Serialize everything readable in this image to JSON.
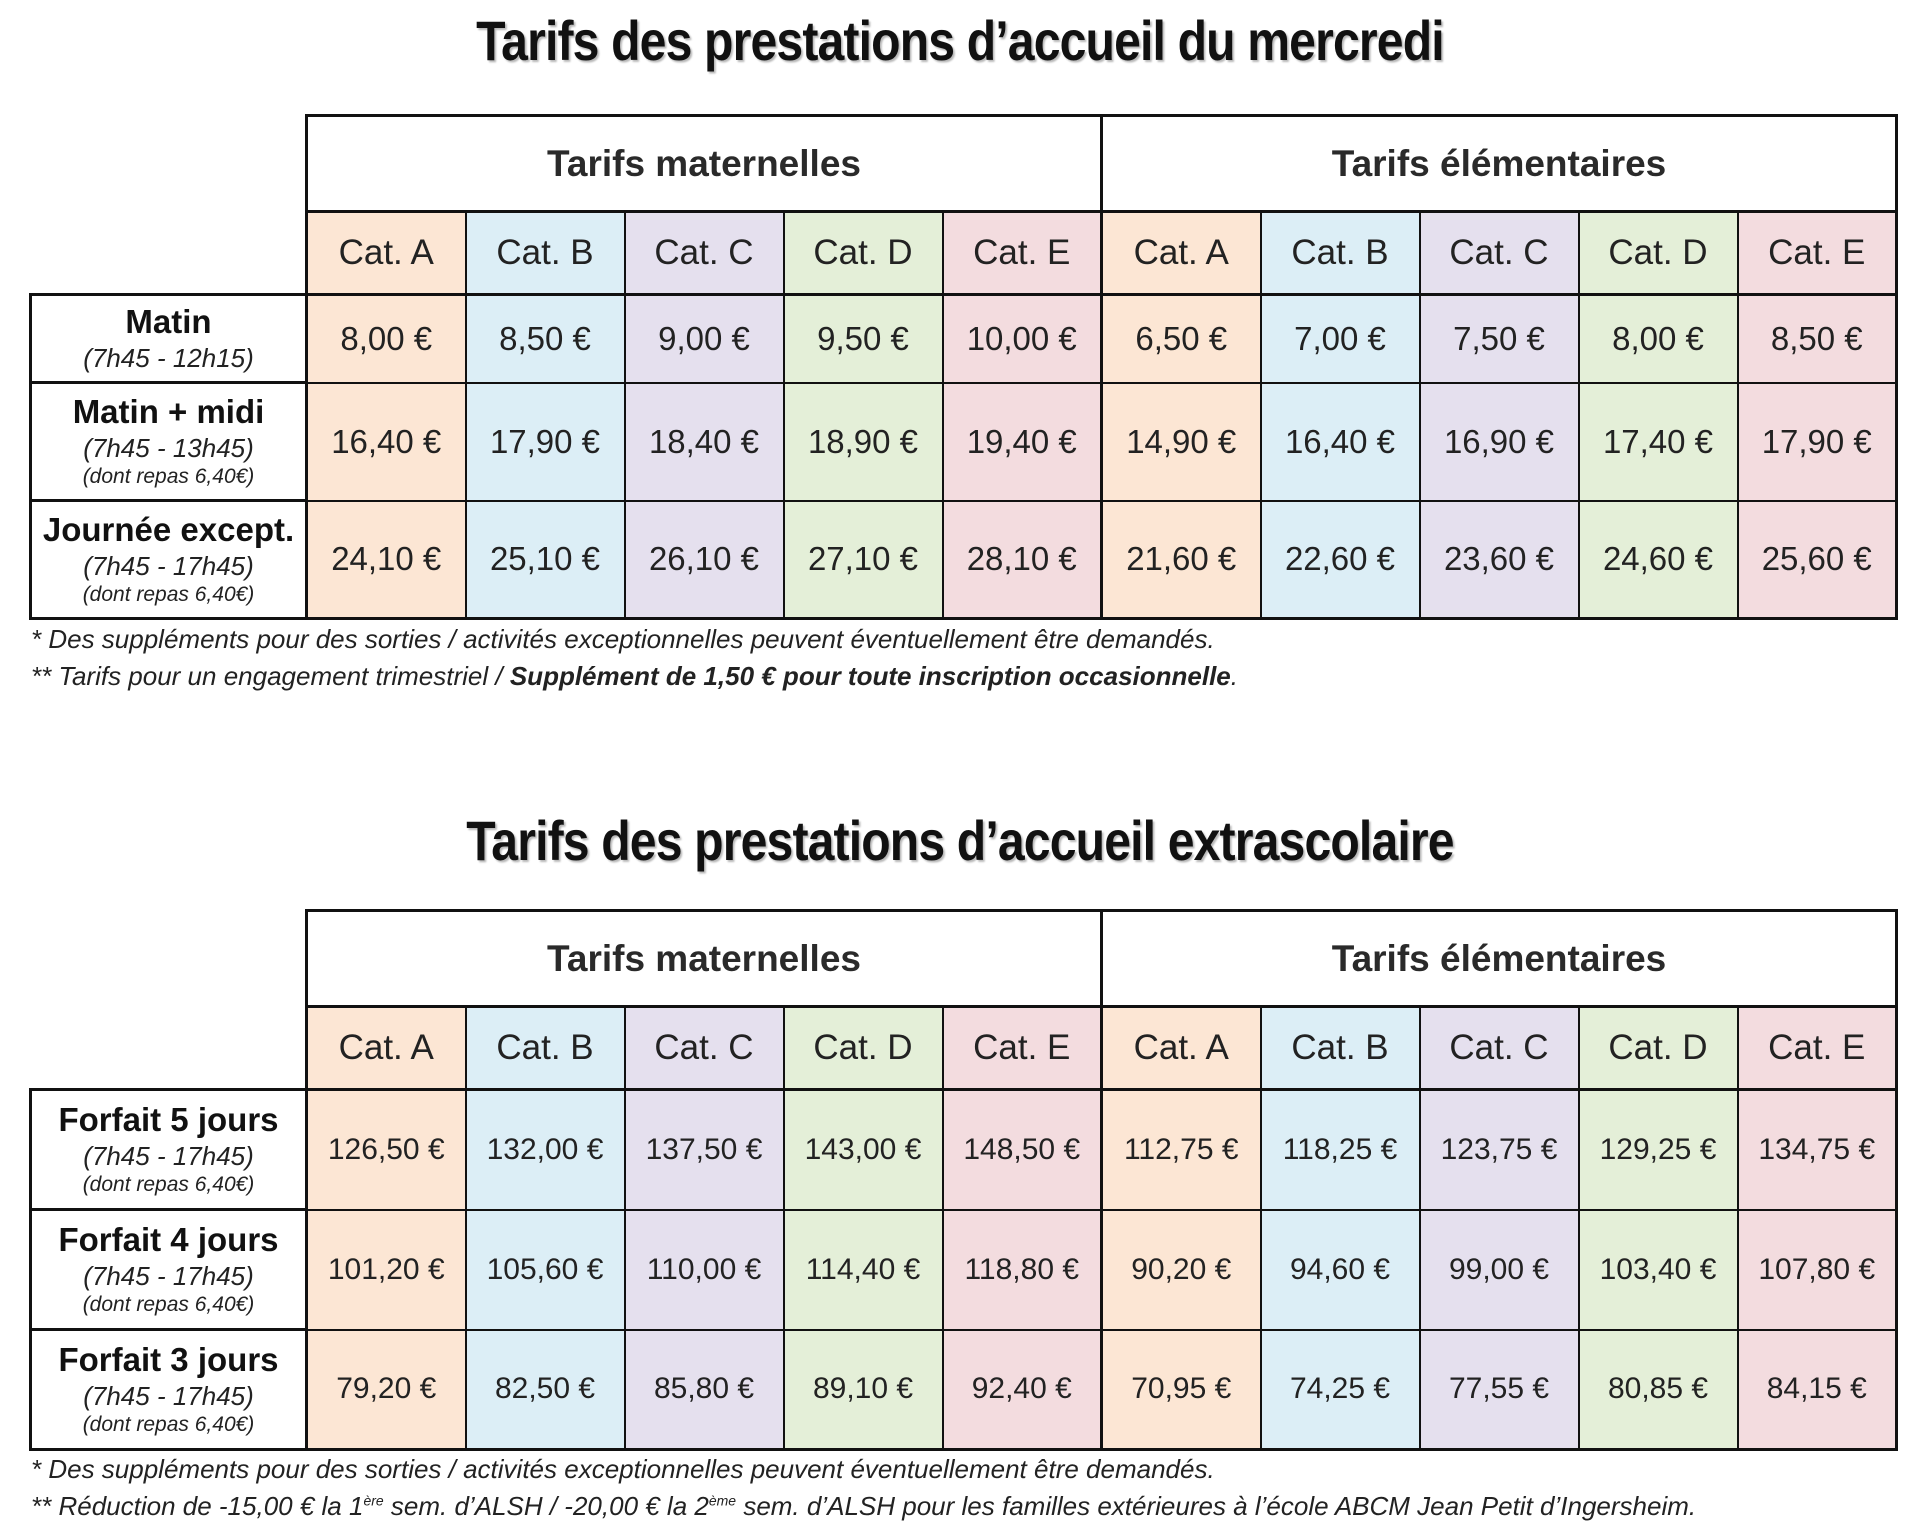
{
  "section1": {
    "title": "Tarifs des prestations d’accueil du mercredi",
    "group_headers": [
      "Tarifs maternelles",
      "Tarifs élémentaires"
    ],
    "categories": [
      "Cat. A",
      "Cat. B",
      "Cat. C",
      "Cat. D",
      "Cat. E",
      "Cat. A",
      "Cat. B",
      "Cat. C",
      "Cat. D",
      "Cat. E"
    ],
    "rows": [
      {
        "label": "Matin",
        "time": "(7h45 - 12h15)",
        "note": "",
        "values": [
          "8,00 €",
          "8,50 €",
          "9,00 €",
          "9,50 €",
          "10,00 €",
          "6,50 €",
          "7,00 €",
          "7,50 €",
          "8,00 €",
          "8,50 €"
        ]
      },
      {
        "label": "Matin + midi",
        "time": "(7h45 - 13h45)",
        "note": "(dont repas 6,40€)",
        "values": [
          "16,40 €",
          "17,90 €",
          "18,40 €",
          "18,90 €",
          "19,40 €",
          "14,90 €",
          "16,40 €",
          "16,90 €",
          "17,40 €",
          "17,90 €"
        ]
      },
      {
        "label": "Journée except.",
        "time": "(7h45 - 17h45)",
        "note": "(dont repas 6,40€)",
        "values": [
          "24,10 €",
          "25,10 €",
          "26,10 €",
          "27,10 €",
          "28,10 €",
          "21,60 €",
          "22,60 €",
          "23,60 €",
          "24,60 €",
          "25,60 €"
        ]
      }
    ],
    "footnote1": "* Des suppléments pour des sorties / activités exceptionnelles peuvent éventuellement être demandés.",
    "footnote2_prefix": "** Tarifs pour un engagement trimestriel / ",
    "footnote2_bold": "Supplément de 1,50 € pour toute inscription occasionnelle",
    "footnote2_suffix": "."
  },
  "section2": {
    "title": "Tarifs des prestations d’accueil extrascolaire",
    "group_headers": [
      "Tarifs maternelles",
      "Tarifs élémentaires"
    ],
    "categories": [
      "Cat. A",
      "Cat. B",
      "Cat. C",
      "Cat. D",
      "Cat. E",
      "Cat. A",
      "Cat. B",
      "Cat. C",
      "Cat. D",
      "Cat. E"
    ],
    "rows": [
      {
        "label": "Forfait 5 jours",
        "time": "(7h45 - 17h45)",
        "note": "(dont repas 6,40€)",
        "values": [
          "126,50 €",
          "132,00 €",
          "137,50 €",
          "143,00 €",
          "148,50 €",
          "112,75 €",
          "118,25 €",
          "123,75 €",
          "129,25 €",
          "134,75 €"
        ]
      },
      {
        "label": "Forfait 4 jours",
        "time": "(7h45 - 17h45)",
        "note": "(dont repas 6,40€)",
        "values": [
          "101,20 €",
          "105,60 €",
          "110,00 €",
          "114,40 €",
          "118,80 €",
          "90,20 €",
          "94,60 €",
          "99,00 €",
          "103,40 €",
          "107,80 €"
        ]
      },
      {
        "label": "Forfait 3 jours",
        "time": "(7h45 - 17h45)",
        "note": "(dont repas 6,40€)",
        "values": [
          "79,20 €",
          "82,50 €",
          "85,80 €",
          "89,10 €",
          "92,40 €",
          "70,95 €",
          "74,25 €",
          "77,55 €",
          "80,85 €",
          "84,15 €"
        ]
      }
    ],
    "footnote1": "* Des suppléments pour des sorties / activités exceptionnelles peuvent éventuellement être demandés.",
    "footnote2_a": "** Réduction de -15,00 € la 1",
    "footnote2_sup1": "ère",
    "footnote2_b": " sem. d’ALSH / -20,00 € la 2",
    "footnote2_sup2": "ème",
    "footnote2_c": " sem. d’ALSH pour les familles extérieures à l’école ABCM Jean Petit d’Ingersheim."
  }
}
